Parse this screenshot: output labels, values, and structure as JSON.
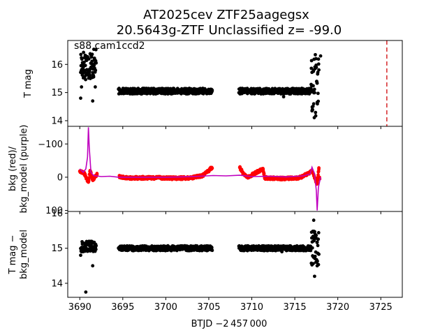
{
  "figure": {
    "title_line1": "AT2025cev  ZTF25aagegsx",
    "title_line2": "20.5643g-ZTF Unclassified z= -99.0",
    "annotation": "s88 cam1ccd2",
    "xlabel": "BTJD −2 457 000",
    "x_ticks": [
      "3690",
      "3695",
      "3700",
      "3705",
      "3710",
      "3715",
      "3720",
      "3725"
    ]
  },
  "chart_data": [
    {
      "type": "scatter",
      "ylabel": "T mag",
      "y_inverted": true,
      "ylim": [
        16.85,
        13.8
      ],
      "xlim": [
        3688.6,
        3727.5
      ],
      "y_ticks": [
        "14",
        "15",
        "16"
      ],
      "marker_color": "#000000",
      "vertical_line": {
        "x": 3725.7,
        "style": "dashed",
        "color": "#d62728"
      },
      "segments": [
        {
          "x_start": 3690.1,
          "x_end": 3691.9,
          "y_center": 16.0,
          "y_spread": 0.55,
          "note_points": [
            [
              3690.1,
              14.8
            ],
            [
              3690.2,
              15.2
            ],
            [
              3691.5,
              14.7
            ],
            [
              3691.8,
              15.2
            ]
          ]
        },
        {
          "x_start": 3694.5,
          "x_end": 3705.4,
          "y_center": 15.05,
          "y_spread": 0.1
        },
        {
          "x_start": 3708.5,
          "x_end": 3716.9,
          "y_center": 15.05,
          "y_spread": 0.1,
          "note_points": [
            [
              3713.7,
              14.85
            ]
          ]
        },
        {
          "x_start": 3716.9,
          "x_end": 3717.8,
          "y_center": 15.3,
          "y_spread": 1.2,
          "note_points": [
            [
              3717.0,
              14.35
            ],
            [
              3717.2,
              14.6
            ],
            [
              3717.6,
              14.65
            ],
            [
              3718.0,
              16.3
            ]
          ]
        }
      ]
    },
    {
      "type": "line+scatter",
      "ylabel": "bkg (red)/\nbkg_model (purple)",
      "ylim": [
        -153,
        103
      ],
      "xlim": [
        3688.6,
        3727.5
      ],
      "y_ticks": [
        "100",
        "0",
        "−100"
      ],
      "y_tick_values": [
        100,
        0,
        -100
      ],
      "series": [
        {
          "color": "#ff0000",
          "points": [
            [
              3690.0,
              -18
            ],
            [
              3690.5,
              -12
            ],
            [
              3691.0,
              15
            ],
            [
              3691.2,
              -20
            ],
            [
              3691.5,
              8
            ],
            [
              3692.0,
              -8
            ],
            [
              3694.7,
              -2
            ],
            [
              3695.5,
              3
            ],
            [
              3697.0,
              2
            ],
            [
              3699.0,
              2
            ],
            [
              3701.0,
              3
            ],
            [
              3703.0,
              2
            ],
            [
              3704.3,
              -5
            ],
            [
              3704.8,
              -15
            ],
            [
              3705.3,
              -28
            ],
            [
              3708.6,
              -30
            ],
            [
              3709.0,
              -10
            ],
            [
              3709.5,
              0
            ],
            [
              3711.3,
              -25
            ],
            [
              3711.5,
              2
            ],
            [
              3713.5,
              4
            ],
            [
              3715.5,
              2
            ],
            [
              3716.5,
              -10
            ],
            [
              3717.0,
              -20
            ],
            [
              3717.6,
              20
            ],
            [
              3717.8,
              -28
            ]
          ]
        },
        {
          "color": "#bf00bf",
          "points": [
            [
              3690.0,
              -25
            ],
            [
              3690.4,
              -15
            ],
            [
              3690.7,
              -25
            ],
            [
              3690.9,
              -60
            ],
            [
              3691.0,
              -150
            ],
            [
              3691.1,
              -90
            ],
            [
              3691.3,
              -15
            ],
            [
              3691.6,
              -5
            ],
            [
              3692.5,
              -2
            ],
            [
              3693.5,
              -3
            ],
            [
              3694.5,
              0
            ],
            [
              3696.0,
              0
            ],
            [
              3698.0,
              0
            ],
            [
              3700.0,
              0
            ],
            [
              3702.0,
              -1
            ],
            [
              3704.0,
              -3
            ],
            [
              3705.5,
              -5
            ],
            [
              3707.0,
              -4
            ],
            [
              3708.6,
              -6
            ],
            [
              3710.0,
              -2
            ],
            [
              3712.0,
              -3
            ],
            [
              3714.0,
              -1
            ],
            [
              3716.0,
              -4
            ],
            [
              3716.8,
              -10
            ],
            [
              3717.0,
              -30
            ],
            [
              3717.3,
              -10
            ],
            [
              3717.5,
              40
            ],
            [
              3717.6,
              100
            ],
            [
              3717.75,
              30
            ],
            [
              3718.0,
              0
            ]
          ]
        }
      ]
    },
    {
      "type": "scatter",
      "ylabel": "T mag −\nbkg_model",
      "y_inverted": true,
      "ylim": [
        16.05,
        13.6
      ],
      "xlim": [
        3688.6,
        3727.5
      ],
      "y_ticks": [
        "14",
        "15",
        "16"
      ],
      "marker_color": "#000000",
      "segments": [
        {
          "x_start": 3690.1,
          "x_end": 3691.9,
          "y_center": 15.05,
          "y_spread": 0.15,
          "note_points": [
            [
              3690.7,
              13.75
            ],
            [
              3691.5,
              14.5
            ],
            [
              3690.1,
              14.8
            ]
          ]
        },
        {
          "x_start": 3694.5,
          "x_end": 3705.4,
          "y_center": 15.0,
          "y_spread": 0.07
        },
        {
          "x_start": 3708.5,
          "x_end": 3716.9,
          "y_center": 15.0,
          "y_spread": 0.07,
          "note_points": [
            [
              3713.5,
              14.9
            ]
          ]
        },
        {
          "x_start": 3716.9,
          "x_end": 3717.8,
          "y_center": 15.0,
          "y_spread": 0.5,
          "note_points": [
            [
              3717.3,
              14.2
            ],
            [
              3717.6,
              14.5
            ],
            [
              3717.2,
              15.8
            ]
          ]
        }
      ]
    }
  ]
}
